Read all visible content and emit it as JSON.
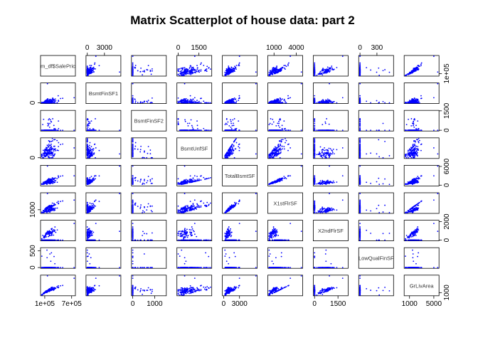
{
  "chart_data": {
    "type": "scatter",
    "title": "Matrix Scatterplot of house data: part 2",
    "point_color": "#0000ff",
    "variables": [
      "m_df$SalePric",
      "BsmtFinSF1",
      "BsmtFinSF2",
      "BsmtUnfSF",
      "TotalBsmtSF",
      "X1stFlrSF",
      "X2ndFlrSF",
      "LowQualFinSF",
      "GrLivArea"
    ],
    "ranges": [
      [
        34900,
        755000
      ],
      [
        0,
        5644
      ],
      [
        0,
        1474
      ],
      [
        0,
        2336
      ],
      [
        0,
        6110
      ],
      [
        334,
        4692
      ],
      [
        0,
        2065
      ],
      [
        0,
        572
      ],
      [
        334,
        5642
      ]
    ],
    "axis_ticks": {
      "top": [
        {
          "panel": 1,
          "labels": [
            "0",
            "3000"
          ],
          "values": [
            0,
            3000
          ]
        },
        {
          "panel": 3,
          "labels": [
            "0",
            "1500"
          ],
          "values": [
            0,
            1500
          ]
        },
        {
          "panel": 5,
          "labels": [
            "1000",
            "4000"
          ],
          "values": [
            1000,
            4000
          ]
        },
        {
          "panel": 7,
          "labels": [
            "0",
            "300"
          ],
          "values": [
            0,
            300
          ]
        }
      ],
      "bottom": [
        {
          "panel": 0,
          "labels": [
            "1e+05",
            "7e+05"
          ],
          "values": [
            100000,
            700000
          ]
        },
        {
          "panel": 2,
          "labels": [
            "0",
            "1000"
          ],
          "values": [
            0,
            1000
          ]
        },
        {
          "panel": 4,
          "labels": [
            "0",
            "3000"
          ],
          "values": [
            0,
            3000
          ]
        },
        {
          "panel": 6,
          "labels": [
            "0",
            "1500"
          ],
          "values": [
            0,
            1500
          ]
        },
        {
          "panel": 8,
          "labels": [
            "1000",
            "5000"
          ],
          "values": [
            1000,
            5000
          ]
        }
      ],
      "left": [
        {
          "panel": 1,
          "labels": [
            "0"
          ],
          "values": [
            0
          ]
        },
        {
          "panel": 3,
          "labels": [
            "0"
          ],
          "values": [
            0
          ]
        },
        {
          "panel": 5,
          "labels": [
            "1000"
          ],
          "values": [
            1000
          ]
        },
        {
          "panel": 7,
          "labels": [
            "0",
            "500"
          ],
          "values": [
            0,
            500
          ]
        }
      ],
      "right": [
        {
          "panel": 0,
          "labels": [
            "1e+05"
          ],
          "values": [
            100000
          ]
        },
        {
          "panel": 2,
          "labels": [
            "0",
            "1500"
          ],
          "values": [
            0,
            1500
          ]
        },
        {
          "panel": 4,
          "labels": [
            "0",
            "6000"
          ],
          "values": [
            0,
            6000
          ]
        },
        {
          "panel": 6,
          "labels": [
            "0",
            "2000"
          ],
          "values": [
            0,
            2000
          ]
        },
        {
          "panel": 8,
          "labels": [
            "1000"
          ],
          "values": [
            1000
          ]
        }
      ]
    }
  }
}
